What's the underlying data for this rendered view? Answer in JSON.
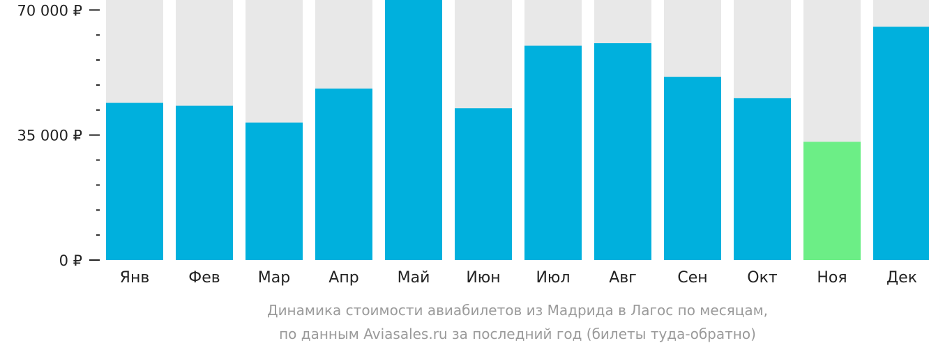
{
  "chart_data": {
    "type": "bar",
    "categories": [
      "Янв",
      "Фев",
      "Мар",
      "Апр",
      "Май",
      "Июн",
      "Июл",
      "Авг",
      "Сен",
      "Окт",
      "Ноя",
      "Дек"
    ],
    "values": [
      44000,
      43200,
      38500,
      48000,
      72800,
      42500,
      60000,
      60700,
      51300,
      45300,
      33100,
      65300
    ],
    "ylim": [
      0,
      72800
    ],
    "yticks": [
      0,
      35000,
      70000
    ],
    "ytick_labels": [
      "0 ₽",
      "35 000 ₽",
      "70 000 ₽"
    ],
    "minor_ticks_between": 4,
    "highlight_index": 10,
    "grid": false,
    "legend": "none",
    "colors": {
      "bar": "#00b0dd",
      "highlight": "#6cee86",
      "track": "#e8e8e8",
      "axis": "#222222"
    }
  },
  "caption": {
    "line1": "Динамика стоимости авиабилетов из Мадрида в Лагос по месяцам,",
    "line2": "по данным Aviasales.ru за последний год (билеты туда-обратно)"
  }
}
